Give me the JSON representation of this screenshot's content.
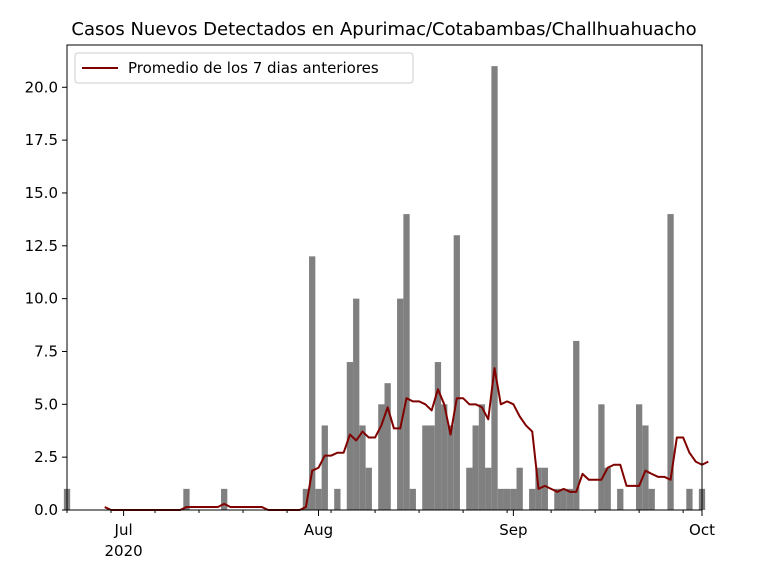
{
  "chart_data": {
    "type": "bar",
    "title": "Casos Nuevos Detectados en Apurimac/Cotabambas/Challhuahuacho",
    "xlabel": "",
    "ylabel": "",
    "x_start": "2020-06-22",
    "x_end": "2020-10-01",
    "ylim": [
      0,
      22
    ],
    "yticks": [
      "0.0",
      "2.5",
      "5.0",
      "7.5",
      "10.0",
      "12.5",
      "15.0",
      "17.5",
      "20.0"
    ],
    "xticks": [
      {
        "date": "2020-07-01",
        "label": "Jul",
        "sublabel": "2020"
      },
      {
        "date": "2020-08-01",
        "label": "Aug"
      },
      {
        "date": "2020-09-01",
        "label": "Sep"
      },
      {
        "date": "2020-10-01",
        "label": "Oct"
      }
    ],
    "legend": {
      "position": "top-left"
    },
    "bar_color": "#808080",
    "line_color": "#800000",
    "series": [
      {
        "type": "bar",
        "points": [
          [
            "2020-06-22",
            1
          ],
          [
            "2020-07-11",
            1
          ],
          [
            "2020-07-17",
            1
          ],
          [
            "2020-07-30",
            1
          ],
          [
            "2020-07-31",
            12
          ],
          [
            "2020-08-01",
            1
          ],
          [
            "2020-08-02",
            4
          ],
          [
            "2020-08-04",
            1
          ],
          [
            "2020-08-06",
            7
          ],
          [
            "2020-08-07",
            10
          ],
          [
            "2020-08-08",
            4
          ],
          [
            "2020-08-09",
            2
          ],
          [
            "2020-08-11",
            5
          ],
          [
            "2020-08-12",
            6
          ],
          [
            "2020-08-14",
            10
          ],
          [
            "2020-08-15",
            14
          ],
          [
            "2020-08-16",
            1
          ],
          [
            "2020-08-18",
            4
          ],
          [
            "2020-08-19",
            4
          ],
          [
            "2020-08-20",
            7
          ],
          [
            "2020-08-21",
            5
          ],
          [
            "2020-08-22",
            4
          ],
          [
            "2020-08-23",
            13
          ],
          [
            "2020-08-25",
            2
          ],
          [
            "2020-08-26",
            4
          ],
          [
            "2020-08-27",
            5
          ],
          [
            "2020-08-28",
            2
          ],
          [
            "2020-08-29",
            21
          ],
          [
            "2020-08-30",
            1
          ],
          [
            "2020-08-31",
            1
          ],
          [
            "2020-09-01",
            1
          ],
          [
            "2020-09-02",
            2
          ],
          [
            "2020-09-04",
            1
          ],
          [
            "2020-09-05",
            2
          ],
          [
            "2020-09-06",
            2
          ],
          [
            "2020-09-08",
            1
          ],
          [
            "2020-09-09",
            1
          ],
          [
            "2020-09-10",
            1
          ],
          [
            "2020-09-11",
            8
          ],
          [
            "2020-09-15",
            5
          ],
          [
            "2020-09-16",
            2
          ],
          [
            "2020-09-18",
            1
          ],
          [
            "2020-09-21",
            5
          ],
          [
            "2020-09-22",
            4
          ],
          [
            "2020-09-23",
            1
          ],
          [
            "2020-09-26",
            14
          ],
          [
            "2020-09-29",
            1
          ],
          [
            "2020-10-01",
            1
          ]
        ]
      },
      {
        "type": "line",
        "name": "Promedio de los 7 dias anteriores",
        "points": [
          [
            "2020-06-28",
            0.14
          ],
          [
            "2020-06-29",
            0.0
          ],
          [
            "2020-07-10",
            0.0
          ],
          [
            "2020-07-11",
            0.14
          ],
          [
            "2020-07-16",
            0.14
          ],
          [
            "2020-07-17",
            0.29
          ],
          [
            "2020-07-18",
            0.14
          ],
          [
            "2020-07-23",
            0.14
          ],
          [
            "2020-07-24",
            0.0
          ],
          [
            "2020-07-29",
            0.0
          ],
          [
            "2020-07-30",
            0.14
          ],
          [
            "2020-07-31",
            1.86
          ],
          [
            "2020-08-01",
            2.0
          ],
          [
            "2020-08-02",
            2.57
          ],
          [
            "2020-08-03",
            2.57
          ],
          [
            "2020-08-04",
            2.71
          ],
          [
            "2020-08-05",
            2.71
          ],
          [
            "2020-08-06",
            3.57
          ],
          [
            "2020-08-07",
            3.29
          ],
          [
            "2020-08-08",
            3.71
          ],
          [
            "2020-08-09",
            3.43
          ],
          [
            "2020-08-10",
            3.43
          ],
          [
            "2020-08-11",
            4.0
          ],
          [
            "2020-08-12",
            4.86
          ],
          [
            "2020-08-13",
            3.86
          ],
          [
            "2020-08-14",
            3.86
          ],
          [
            "2020-08-15",
            5.29
          ],
          [
            "2020-08-16",
            5.14
          ],
          [
            "2020-08-17",
            5.14
          ],
          [
            "2020-08-18",
            5.0
          ],
          [
            "2020-08-19",
            4.71
          ],
          [
            "2020-08-20",
            5.71
          ],
          [
            "2020-08-21",
            5.0
          ],
          [
            "2020-08-22",
            3.57
          ],
          [
            "2020-08-23",
            5.29
          ],
          [
            "2020-08-24",
            5.29
          ],
          [
            "2020-08-25",
            5.0
          ],
          [
            "2020-08-26",
            5.0
          ],
          [
            "2020-08-27",
            4.86
          ],
          [
            "2020-08-28",
            4.29
          ],
          [
            "2020-08-29",
            6.71
          ],
          [
            "2020-08-30",
            5.0
          ],
          [
            "2020-08-31",
            5.14
          ],
          [
            "2020-09-01",
            5.0
          ],
          [
            "2020-09-02",
            4.43
          ],
          [
            "2020-09-03",
            4.0
          ],
          [
            "2020-09-04",
            3.71
          ],
          [
            "2020-09-05",
            1.0
          ],
          [
            "2020-09-06",
            1.14
          ],
          [
            "2020-09-07",
            1.0
          ],
          [
            "2020-09-08",
            0.86
          ],
          [
            "2020-09-09",
            1.0
          ],
          [
            "2020-09-10",
            0.86
          ],
          [
            "2020-09-11",
            0.86
          ],
          [
            "2020-09-12",
            1.71
          ],
          [
            "2020-09-13",
            1.43
          ],
          [
            "2020-09-14",
            1.43
          ],
          [
            "2020-09-15",
            1.43
          ],
          [
            "2020-09-16",
            2.0
          ],
          [
            "2020-09-17",
            2.14
          ],
          [
            "2020-09-18",
            2.14
          ],
          [
            "2020-09-19",
            1.14
          ],
          [
            "2020-09-20",
            1.14
          ],
          [
            "2020-09-21",
            1.14
          ],
          [
            "2020-09-22",
            1.86
          ],
          [
            "2020-09-23",
            1.71
          ],
          [
            "2020-09-24",
            1.57
          ],
          [
            "2020-09-25",
            1.57
          ],
          [
            "2020-09-26",
            1.43
          ],
          [
            "2020-09-27",
            3.43
          ],
          [
            "2020-09-28",
            3.43
          ],
          [
            "2020-09-29",
            2.71
          ],
          [
            "2020-09-30",
            2.29
          ],
          [
            "2020-10-01",
            2.14
          ],
          [
            "2020-10-02",
            2.29
          ]
        ]
      }
    ]
  }
}
